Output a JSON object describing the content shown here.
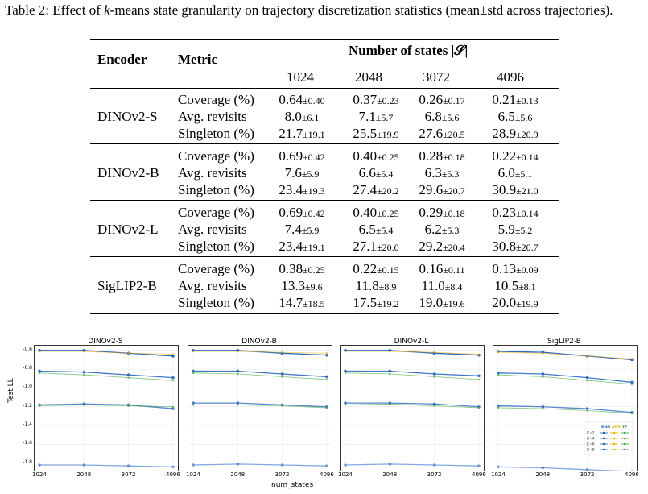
{
  "caption": "Table 2: Effect of k-means state granularity on trajectory discretization statistics (mean±std across trajectories).",
  "caption_pre": "Table 2: Effect of ",
  "caption_k": "k",
  "caption_post": "-means state granularity on trajectory discretization statistics (mean±std across trajectories).",
  "table": {
    "header_encoder": "Encoder",
    "header_metric": "Metric",
    "header_group": "Number of states |𝒮|",
    "columns": [
      "1024",
      "2048",
      "3072",
      "4096"
    ],
    "groups": [
      {
        "encoder": "DINOv2-S",
        "rows": [
          {
            "metric": "Coverage (%)",
            "cells": [
              [
                "0.64",
                "±0.40"
              ],
              [
                "0.37",
                "±0.23"
              ],
              [
                "0.26",
                "±0.17"
              ],
              [
                "0.21",
                "±0.13"
              ]
            ]
          },
          {
            "metric": "Avg. revisits",
            "cells": [
              [
                "8.0",
                "±6.1"
              ],
              [
                "7.1",
                "±5.7"
              ],
              [
                "6.8",
                "±5.6"
              ],
              [
                "6.5",
                "±5.6"
              ]
            ]
          },
          {
            "metric": "Singleton (%)",
            "cells": [
              [
                "21.7",
                "±19.1"
              ],
              [
                "25.5",
                "±19.9"
              ],
              [
                "27.6",
                "±20.5"
              ],
              [
                "28.9",
                "±20.9"
              ]
            ]
          }
        ]
      },
      {
        "encoder": "DINOv2-B",
        "rows": [
          {
            "metric": "Coverage (%)",
            "cells": [
              [
                "0.69",
                "±0.42"
              ],
              [
                "0.40",
                "±0.25"
              ],
              [
                "0.28",
                "±0.18"
              ],
              [
                "0.22",
                "±0.14"
              ]
            ]
          },
          {
            "metric": "Avg. revisits",
            "cells": [
              [
                "7.6",
                "±5.9"
              ],
              [
                "6.6",
                "±5.4"
              ],
              [
                "6.3",
                "±5.3"
              ],
              [
                "6.0",
                "±5.1"
              ]
            ]
          },
          {
            "metric": "Singleton (%)",
            "cells": [
              [
                "23.4",
                "±19.3"
              ],
              [
                "27.4",
                "±20.2"
              ],
              [
                "29.6",
                "±20.7"
              ],
              [
                "30.9",
                "±21.0"
              ]
            ]
          }
        ]
      },
      {
        "encoder": "DINOv2-L",
        "rows": [
          {
            "metric": "Coverage (%)",
            "cells": [
              [
                "0.69",
                "±0.42"
              ],
              [
                "0.40",
                "±0.25"
              ],
              [
                "0.29",
                "±0.18"
              ],
              [
                "0.23",
                "±0.14"
              ]
            ]
          },
          {
            "metric": "Avg. revisits",
            "cells": [
              [
                "7.4",
                "±5.9"
              ],
              [
                "6.5",
                "±5.4"
              ],
              [
                "6.2",
                "±5.3"
              ],
              [
                "5.9",
                "±5.2"
              ]
            ]
          },
          {
            "metric": "Singleton (%)",
            "cells": [
              [
                "23.4",
                "±19.1"
              ],
              [
                "27.1",
                "±20.0"
              ],
              [
                "29.2",
                "±20.4"
              ],
              [
                "30.8",
                "±20.7"
              ]
            ]
          }
        ]
      },
      {
        "encoder": "SigLIP2-B",
        "rows": [
          {
            "metric": "Coverage (%)",
            "cells": [
              [
                "0.38",
                "±0.25"
              ],
              [
                "0.22",
                "±0.15"
              ],
              [
                "0.16",
                "±0.11"
              ],
              [
                "0.13",
                "±0.09"
              ]
            ]
          },
          {
            "metric": "Avg. revisits",
            "cells": [
              [
                "13.3",
                "±9.6"
              ],
              [
                "11.8",
                "±8.9"
              ],
              [
                "11.0",
                "±8.4"
              ],
              [
                "10.5",
                "±8.1"
              ]
            ]
          },
          {
            "metric": "Singleton (%)",
            "cells": [
              [
                "14.7",
                "±18.5"
              ],
              [
                "17.5",
                "±19.2"
              ],
              [
                "19.0",
                "±19.6"
              ],
              [
                "20.0",
                "±19.9"
              ]
            ]
          }
        ]
      }
    ]
  },
  "chart_data": {
    "type": "line",
    "ylabel": "Test LL",
    "xlabel": "num_states",
    "x": [
      1024,
      2048,
      3072,
      4096
    ],
    "xticks": [
      "1024",
      "2048",
      "3072",
      "4096"
    ],
    "yticks": [
      "-0.6",
      "-0.8",
      "-1.0",
      "-1.2",
      "-1.4",
      "-1.6",
      "-1.8"
    ],
    "ylim": [
      -1.88,
      -0.55
    ],
    "legend": {
      "placement": "lower-right of last panel",
      "columns": [
        "RNN",
        "STM",
        "TF"
      ],
      "rows": [
        "K=2",
        "K=4",
        "K=6",
        "K=8"
      ]
    },
    "colors": {
      "RNN": "#1f5fbf",
      "STM": "#f0b000",
      "TF": "#2ca02c"
    },
    "panels": [
      {
        "title": "DINOv2-S",
        "series": [
          {
            "model": "RNN",
            "K": "K=2",
            "values": [
              -1.82,
              -1.82,
              -1.83,
              -1.84
            ]
          },
          {
            "model": "RNN",
            "K": "K=4",
            "values": [
              -1.18,
              -1.17,
              -1.18,
              -1.22
            ]
          },
          {
            "model": "RNN",
            "K": "K=6",
            "values": [
              -0.82,
              -0.83,
              -0.86,
              -0.89
            ]
          },
          {
            "model": "RNN",
            "K": "K=8",
            "values": [
              -0.6,
              -0.6,
              -0.63,
              -0.66
            ]
          },
          {
            "model": "STM",
            "K": "K=8",
            "values": [
              -0.61,
              -0.61,
              -0.63,
              -0.64
            ]
          },
          {
            "model": "TF",
            "K": "K=6",
            "values": [
              -0.84,
              -0.86,
              -0.89,
              -0.92
            ]
          },
          {
            "model": "TF",
            "K": "K=4",
            "values": [
              -1.19,
              -1.18,
              -1.19,
              -1.2
            ]
          }
        ]
      },
      {
        "title": "DINOv2-B",
        "series": [
          {
            "model": "RNN",
            "K": "K=2",
            "values": [
              -1.82,
              -1.81,
              -1.82,
              -1.83
            ]
          },
          {
            "model": "RNN",
            "K": "K=4",
            "values": [
              -1.16,
              -1.16,
              -1.18,
              -1.2
            ]
          },
          {
            "model": "RNN",
            "K": "K=6",
            "values": [
              -0.82,
              -0.82,
              -0.85,
              -0.88
            ]
          },
          {
            "model": "RNN",
            "K": "K=8",
            "values": [
              -0.6,
              -0.6,
              -0.63,
              -0.65
            ]
          },
          {
            "model": "STM",
            "K": "K=8",
            "values": [
              -0.61,
              -0.61,
              -0.62,
              -0.63
            ]
          },
          {
            "model": "TF",
            "K": "K=6",
            "values": [
              -0.84,
              -0.85,
              -0.88,
              -0.91
            ]
          },
          {
            "model": "TF",
            "K": "K=4",
            "values": [
              -1.18,
              -1.18,
              -1.19,
              -1.21
            ]
          }
        ]
      },
      {
        "title": "DINOv2-L",
        "series": [
          {
            "model": "RNN",
            "K": "K=2",
            "values": [
              -1.82,
              -1.81,
              -1.82,
              -1.83
            ]
          },
          {
            "model": "RNN",
            "K": "K=4",
            "values": [
              -1.16,
              -1.16,
              -1.17,
              -1.2
            ]
          },
          {
            "model": "RNN",
            "K": "K=6",
            "values": [
              -0.82,
              -0.82,
              -0.85,
              -0.87
            ]
          },
          {
            "model": "RNN",
            "K": "K=8",
            "values": [
              -0.6,
              -0.6,
              -0.63,
              -0.65
            ]
          },
          {
            "model": "STM",
            "K": "K=8",
            "values": [
              -0.61,
              -0.61,
              -0.62,
              -0.64
            ]
          },
          {
            "model": "TF",
            "K": "K=6",
            "values": [
              -0.84,
              -0.85,
              -0.88,
              -0.91
            ]
          },
          {
            "model": "TF",
            "K": "K=4",
            "values": [
              -1.18,
              -1.17,
              -1.19,
              -1.21
            ]
          }
        ]
      },
      {
        "title": "SigLIP2-B",
        "series": [
          {
            "model": "RNN",
            "K": "K=2",
            "values": [
              -1.84,
              -1.85,
              -1.87,
              -1.89
            ]
          },
          {
            "model": "RNN",
            "K": "K=4",
            "values": [
              -1.19,
              -1.2,
              -1.22,
              -1.26
            ]
          },
          {
            "model": "RNN",
            "K": "K=6",
            "values": [
              -0.84,
              -0.85,
              -0.89,
              -0.94
            ]
          },
          {
            "model": "RNN",
            "K": "K=8",
            "values": [
              -0.61,
              -0.62,
              -0.66,
              -0.7
            ]
          },
          {
            "model": "STM",
            "K": "K=8",
            "values": [
              -0.62,
              -0.63,
              -0.66,
              -0.69
            ]
          },
          {
            "model": "TF",
            "K": "K=6",
            "values": [
              -0.86,
              -0.88,
              -0.92,
              -0.96
            ]
          },
          {
            "model": "TF",
            "K": "K=4",
            "values": [
              -1.21,
              -1.22,
              -1.24,
              -1.27
            ]
          }
        ]
      }
    ]
  }
}
